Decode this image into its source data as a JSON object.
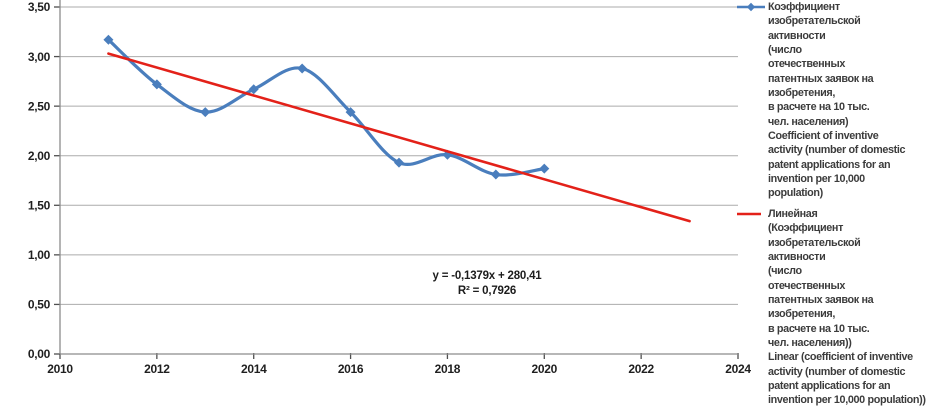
{
  "chart_data": {
    "type": "line",
    "title": "",
    "xlabel": "",
    "ylabel": "",
    "xlim": [
      2010,
      2024
    ],
    "ylim": [
      0,
      3.5
    ],
    "grid": "horizontal",
    "legend_position": "right",
    "x_ticks": [
      {
        "v": 2010,
        "label": "2010"
      },
      {
        "v": 2012,
        "label": "2012"
      },
      {
        "v": 2014,
        "label": "2014"
      },
      {
        "v": 2016,
        "label": "2016"
      },
      {
        "v": 2018,
        "label": "2018"
      },
      {
        "v": 2020,
        "label": "2020"
      },
      {
        "v": 2022,
        "label": "2022"
      },
      {
        "v": 2024,
        "label": "2024"
      }
    ],
    "y_ticks": [
      {
        "v": 0,
        "label": "0,00"
      },
      {
        "v": 0.5,
        "label": "0,50"
      },
      {
        "v": 1,
        "label": "1,00"
      },
      {
        "v": 1.5,
        "label": "1,50"
      },
      {
        "v": 2,
        "label": "2,00"
      },
      {
        "v": 2.5,
        "label": "2,50"
      },
      {
        "v": 3,
        "label": "3,00"
      },
      {
        "v": 3.5,
        "label": "3,50"
      }
    ],
    "series": [
      {
        "name": "Коэффициент изобретательской активности (число отечественных патентных заявок на изобретения, в расчете на 10 тыс. чел. населения) Coefficient of inventive activity (number of domestic patent applications for an invention per 10,000 population)",
        "style": "smooth-line-with-diamond-markers",
        "color": "#4a7ebd",
        "x": [
          2011,
          2012,
          2013,
          2014,
          2015,
          2016,
          2017,
          2018,
          2019,
          2020
        ],
        "values": [
          3.17,
          2.72,
          2.44,
          2.67,
          2.88,
          2.44,
          1.93,
          2.01,
          1.81,
          1.87
        ]
      }
    ],
    "trendline": {
      "name": "Линейная (Коэффициент изобретательской активности (число отечественных патентных заявок на изобретения, в расчете на 10 тыс. чел. населения)) Linear (coefficient of inventive activity (number of domestic patent applications for an invention per 10,000 population))",
      "color": "#e32119",
      "x": [
        2011,
        2023
      ],
      "y": [
        3.03,
        1.34
      ],
      "equation": "y = -0,1379x + 280,41",
      "r2": "R² = 0,7926"
    }
  },
  "legend": {
    "items": [
      {
        "marker": "blue-line-with-diamond",
        "color": "#4a7ebd",
        "lines": [
          "Коэффициент",
          "изобретательской",
          "активности",
          "(число",
          "отечественных",
          "патентных заявок на",
          "изобретения,",
          "в расчете на 10 тыс.",
          "чел. населения)",
          "Coefficient of inventive",
          "activity (number of domestic",
          "patent applications for an",
          "invention per 10,000",
          "population)"
        ]
      },
      {
        "marker": "red-line",
        "color": "#e32119",
        "lines": [
          "Линейная",
          "(Коэффициент",
          "изобретательской",
          "активности",
          "(число",
          "отечественных",
          "патентных заявок на",
          "изобретения,",
          "в расчете на 10 тыс.",
          "чел. населения))",
          "Linear (coefficient of inventive",
          "activity (number of domestic",
          "patent applications for an",
          "invention per 10,000 population))"
        ]
      }
    ]
  },
  "colors": {
    "grid": "#ababab",
    "axis": "#8c8c8c",
    "tick": "#4f4f4f",
    "series_blue": "#4a7ebd",
    "trend_red": "#e32119",
    "tick_text": "#1f1f1f",
    "legend_text": "#3c3c3c"
  }
}
